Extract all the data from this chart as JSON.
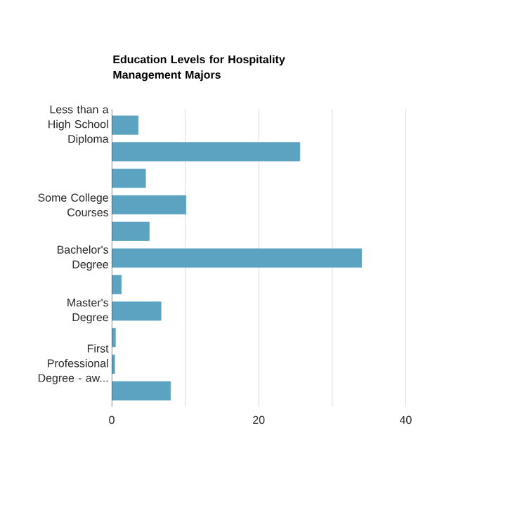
{
  "chart_data": {
    "type": "bar",
    "orientation": "horizontal",
    "title": "Education Levels for Hospitality Management Majors",
    "categories": [
      "Less than a High School Diploma",
      null,
      null,
      "Some College Courses",
      null,
      "Bachelor's Degree",
      null,
      "Master's Degree",
      null,
      "First Professional Degree - aw...",
      null
    ],
    "values": [
      3.6,
      25.6,
      4.6,
      10.1,
      5.1,
      34.0,
      1.3,
      6.7,
      0.5,
      0.4,
      8.0
    ],
    "color": "#5ba3c0",
    "xlim": [
      0,
      40
    ],
    "xticks": [
      0,
      {
        "value": 10,
        "label": null
      },
      20,
      {
        "value": 30,
        "label": null
      },
      40
    ],
    "grid": "x"
  }
}
